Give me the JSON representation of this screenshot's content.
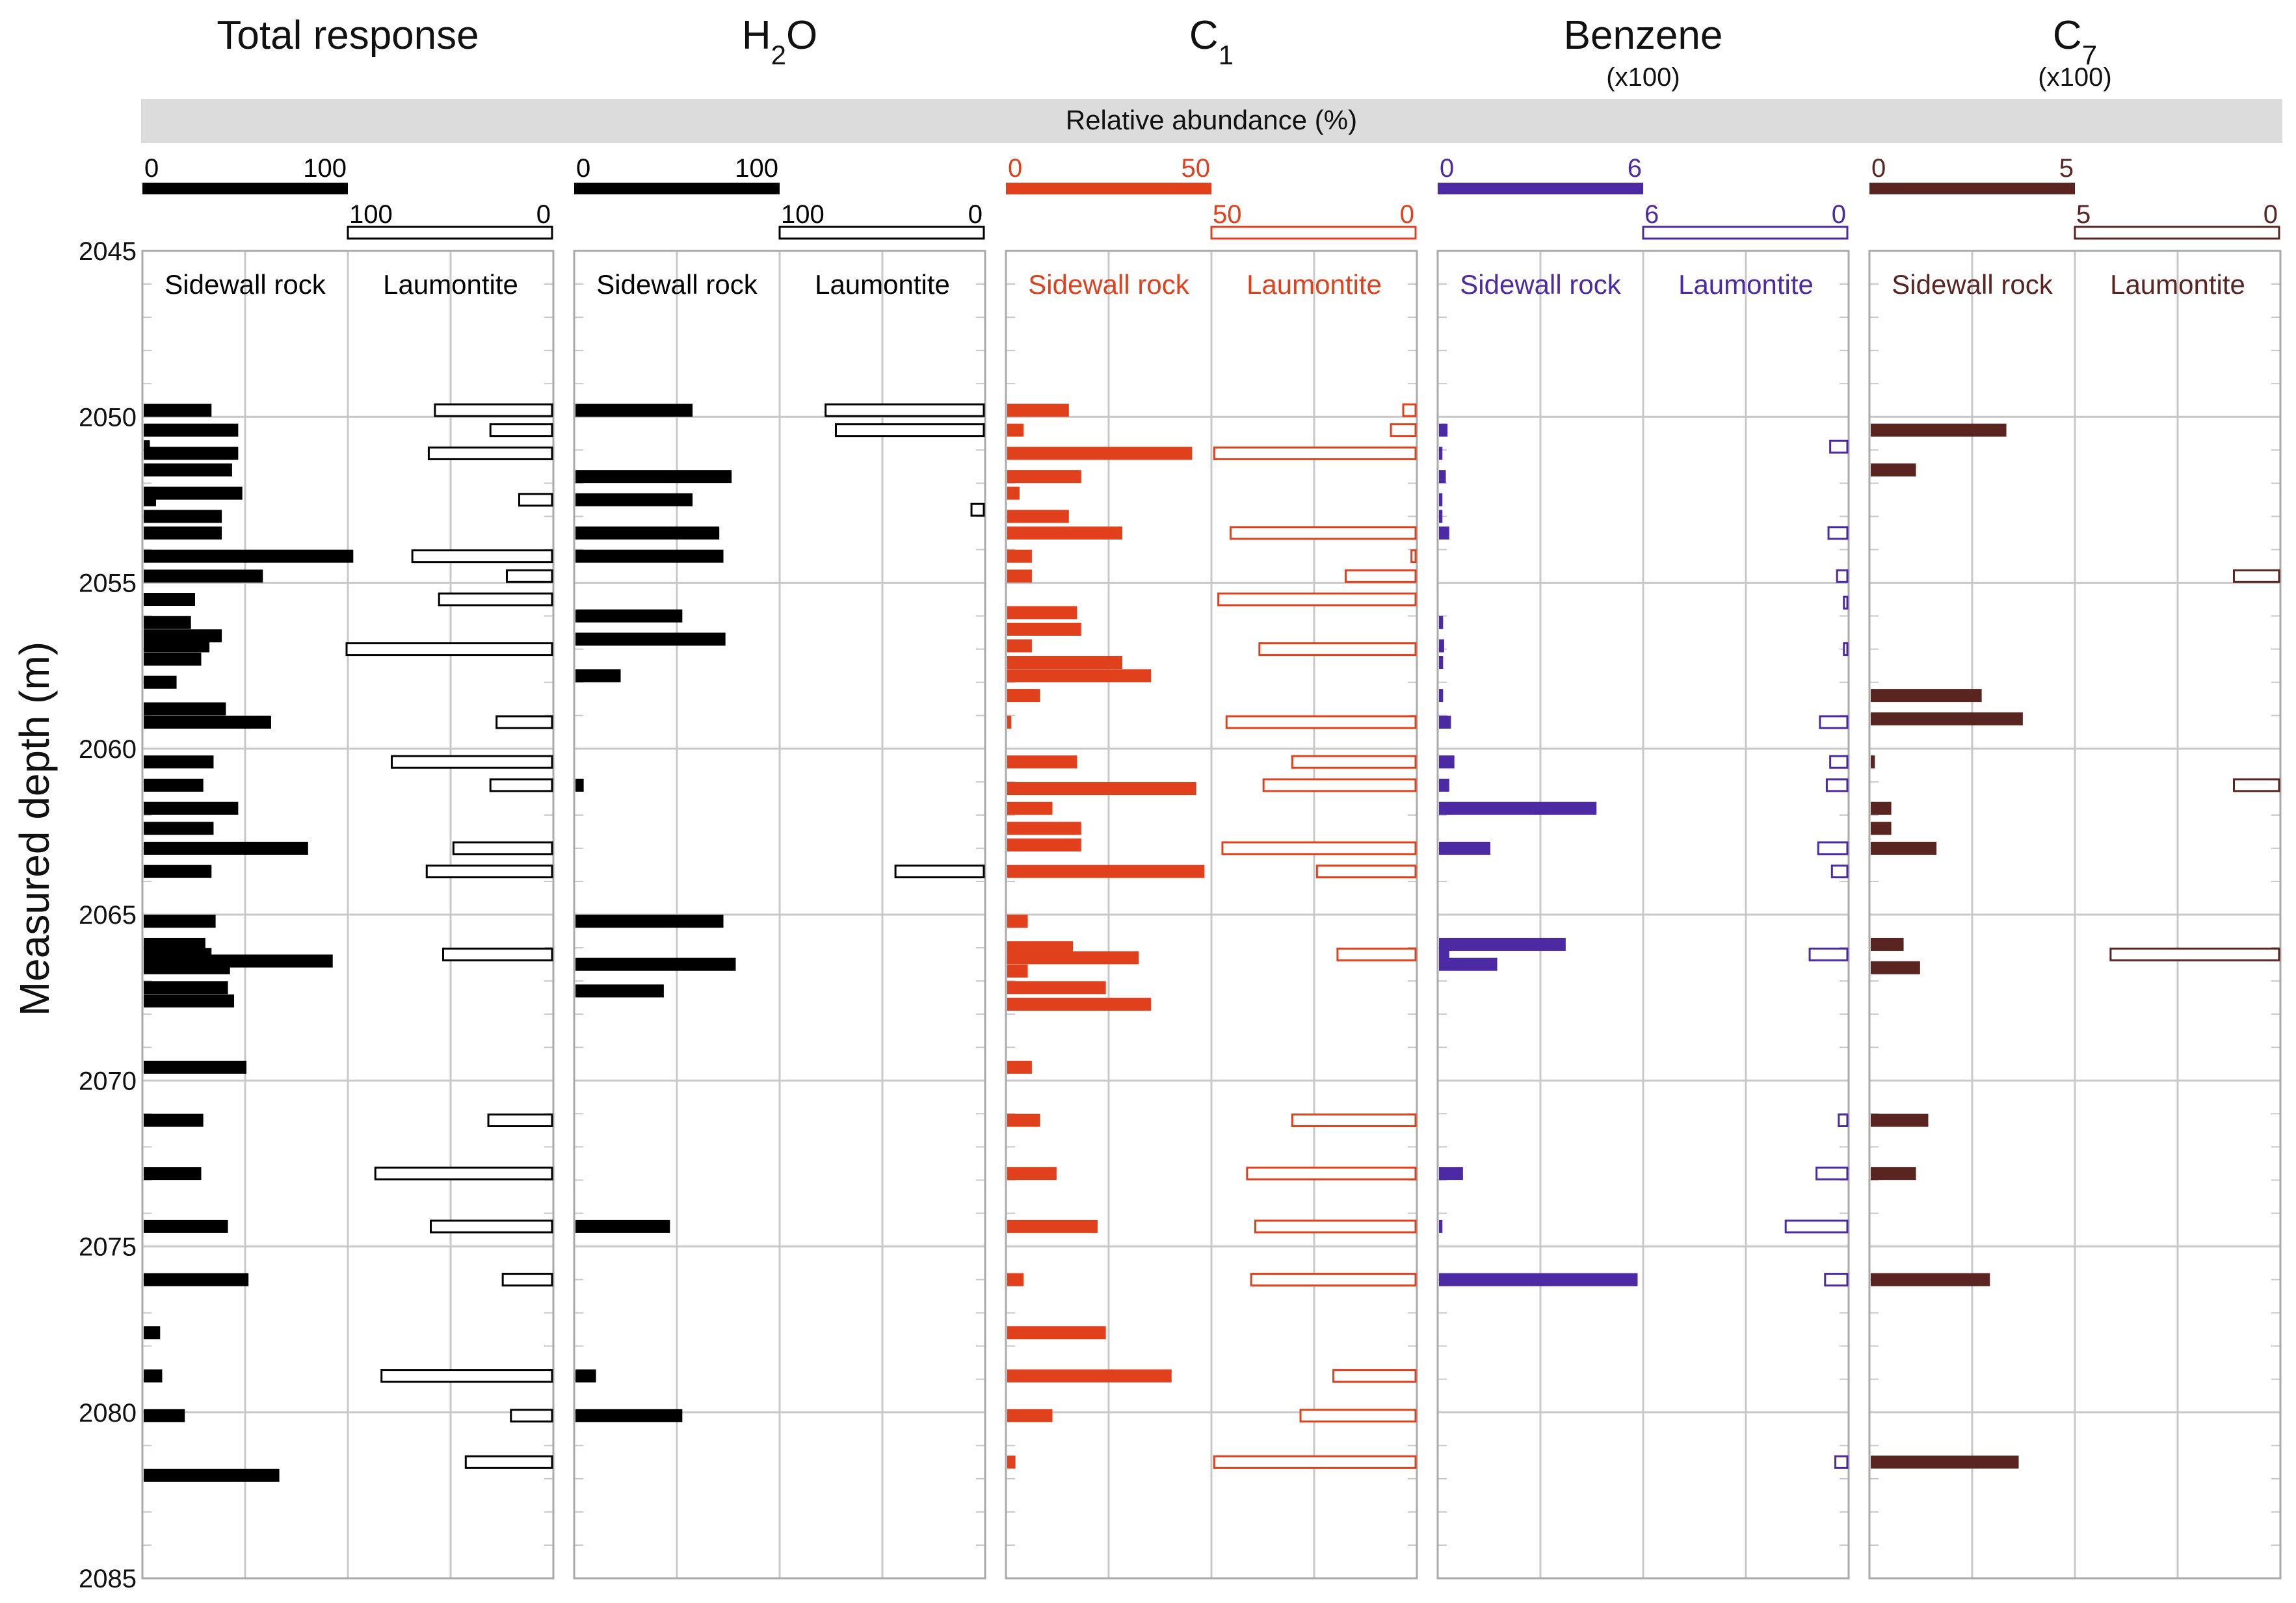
{
  "chart_data": {
    "type": "bar",
    "subtype": "depth-log-bars",
    "ylabel": "Measured depth (m)",
    "ylim": [
      2045,
      2085
    ],
    "y_ticks": [
      2045,
      2050,
      2055,
      2060,
      2065,
      2070,
      2075,
      2080,
      2085
    ],
    "banner": "Relative abundance (%)",
    "left_series_label": "Sidewall rock",
    "right_series_label": "Laumontite",
    "panels": [
      {
        "id": "total",
        "title": "Total response",
        "sub": "",
        "subscript": "",
        "subnote": "",
        "color": "#000000",
        "max": 100,
        "left_scale_labels": [
          "0",
          "100"
        ],
        "right_scale_labels": [
          "100",
          "0"
        ],
        "sidewall": [
          [
            2049.8,
            33
          ],
          [
            2050.4,
            46
          ],
          [
            2050.9,
            3
          ],
          [
            2051.1,
            46
          ],
          [
            2051.6,
            43
          ],
          [
            2052.3,
            48
          ],
          [
            2052.5,
            6
          ],
          [
            2053.0,
            38
          ],
          [
            2053.5,
            38
          ],
          [
            2054.2,
            102
          ],
          [
            2054.8,
            58
          ],
          [
            2055.5,
            25
          ],
          [
            2056.2,
            23
          ],
          [
            2056.6,
            38
          ],
          [
            2056.9,
            32
          ],
          [
            2057.3,
            28
          ],
          [
            2058.0,
            16
          ],
          [
            2058.8,
            40
          ],
          [
            2059.2,
            62
          ],
          [
            2060.4,
            34
          ],
          [
            2061.1,
            29
          ],
          [
            2061.8,
            46
          ],
          [
            2062.4,
            34
          ],
          [
            2063.0,
            80
          ],
          [
            2063.7,
            33
          ],
          [
            2065.2,
            35
          ],
          [
            2065.9,
            30
          ],
          [
            2066.2,
            33
          ],
          [
            2066.4,
            92
          ],
          [
            2066.6,
            42
          ],
          [
            2067.2,
            41
          ],
          [
            2067.6,
            44
          ],
          [
            2069.6,
            50
          ],
          [
            2071.2,
            29
          ],
          [
            2072.8,
            28
          ],
          [
            2074.4,
            41
          ],
          [
            2076.0,
            51
          ],
          [
            2077.6,
            8
          ],
          [
            2078.9,
            9
          ],
          [
            2080.1,
            20
          ],
          [
            2081.9,
            66
          ]
        ],
        "laumontite": [
          [
            2049.8,
            57
          ],
          [
            2050.4,
            30
          ],
          [
            2051.1,
            60
          ],
          [
            2052.5,
            16
          ],
          [
            2054.2,
            68
          ],
          [
            2054.8,
            22
          ],
          [
            2055.5,
            55
          ],
          [
            2057.0,
            100
          ],
          [
            2059.2,
            27
          ],
          [
            2060.4,
            78
          ],
          [
            2061.1,
            30
          ],
          [
            2063.0,
            48
          ],
          [
            2063.7,
            61
          ],
          [
            2066.2,
            53
          ],
          [
            2071.2,
            31
          ],
          [
            2072.8,
            86
          ],
          [
            2074.4,
            59
          ],
          [
            2076.0,
            24
          ],
          [
            2078.9,
            83
          ],
          [
            2080.1,
            20
          ],
          [
            2081.5,
            42
          ]
        ]
      },
      {
        "id": "h2o",
        "title": "H",
        "sub": "2",
        "subscript": "O",
        "subnote": "",
        "color": "#000000",
        "max": 100,
        "left_scale_labels": [
          "0",
          "100"
        ],
        "right_scale_labels": [
          "100",
          "0"
        ],
        "sidewall": [
          [
            2049.8,
            57
          ],
          [
            2051.8,
            76
          ],
          [
            2052.5,
            57
          ],
          [
            2053.5,
            70
          ],
          [
            2054.2,
            72
          ],
          [
            2056.0,
            52
          ],
          [
            2056.7,
            73
          ],
          [
            2057.8,
            22
          ],
          [
            2061.1,
            4
          ],
          [
            2065.2,
            72
          ],
          [
            2066.5,
            78
          ],
          [
            2067.3,
            43
          ],
          [
            2074.4,
            46
          ],
          [
            2078.9,
            10
          ],
          [
            2080.1,
            52
          ]
        ],
        "laumontite": [
          [
            2049.8,
            77
          ],
          [
            2050.4,
            72
          ],
          [
            2052.8,
            6
          ],
          [
            2063.7,
            43
          ]
        ]
      },
      {
        "id": "c1",
        "title": "C",
        "sub": "1",
        "subscript": "",
        "subnote": "",
        "color": "#e0401c",
        "max": 50,
        "left_scale_labels": [
          "0",
          "50"
        ],
        "right_scale_labels": [
          "50",
          "0"
        ],
        "sidewall": [
          [
            2049.8,
            15
          ],
          [
            2050.4,
            4
          ],
          [
            2051.1,
            45
          ],
          [
            2051.8,
            18
          ],
          [
            2052.3,
            3
          ],
          [
            2053.0,
            15
          ],
          [
            2053.5,
            28
          ],
          [
            2054.2,
            6
          ],
          [
            2054.8,
            6
          ],
          [
            2055.9,
            17
          ],
          [
            2056.4,
            18
          ],
          [
            2056.9,
            6
          ],
          [
            2057.4,
            28
          ],
          [
            2057.8,
            35
          ],
          [
            2058.4,
            8
          ],
          [
            2059.2,
            1
          ],
          [
            2060.4,
            17
          ],
          [
            2061.2,
            46
          ],
          [
            2061.8,
            11
          ],
          [
            2062.4,
            18
          ],
          [
            2062.9,
            18
          ],
          [
            2063.7,
            48
          ],
          [
            2065.2,
            5
          ],
          [
            2066.0,
            16
          ],
          [
            2066.3,
            32
          ],
          [
            2066.7,
            5
          ],
          [
            2067.2,
            24
          ],
          [
            2067.7,
            35
          ],
          [
            2069.6,
            6
          ],
          [
            2071.2,
            8
          ],
          [
            2072.8,
            12
          ],
          [
            2074.4,
            22
          ],
          [
            2076.0,
            4
          ],
          [
            2077.6,
            24
          ],
          [
            2078.9,
            40
          ],
          [
            2080.1,
            11
          ],
          [
            2081.5,
            2
          ]
        ],
        "laumontite": [
          [
            2049.8,
            3
          ],
          [
            2050.4,
            6
          ],
          [
            2051.1,
            49
          ],
          [
            2053.5,
            45
          ],
          [
            2054.2,
            1
          ],
          [
            2054.8,
            17
          ],
          [
            2055.5,
            48
          ],
          [
            2057.0,
            38
          ],
          [
            2059.2,
            46
          ],
          [
            2060.4,
            30
          ],
          [
            2061.1,
            37
          ],
          [
            2063.0,
            47
          ],
          [
            2063.7,
            24
          ],
          [
            2066.2,
            19
          ],
          [
            2071.2,
            30
          ],
          [
            2072.8,
            41
          ],
          [
            2074.4,
            39
          ],
          [
            2076.0,
            40
          ],
          [
            2078.9,
            20
          ],
          [
            2080.1,
            28
          ],
          [
            2081.5,
            49
          ]
        ]
      },
      {
        "id": "benzene",
        "title": "Benzene",
        "sub": "",
        "subscript": "",
        "subnote": "(x100)",
        "color": "#4b2aa4",
        "max": 6,
        "left_scale_labels": [
          "0",
          "6"
        ],
        "right_scale_labels": [
          "6",
          "0"
        ],
        "sidewall": [
          [
            2050.4,
            0.25
          ],
          [
            2051.1,
            0.1
          ],
          [
            2051.8,
            0.2
          ],
          [
            2052.5,
            0.1
          ],
          [
            2053.0,
            0.1
          ],
          [
            2053.5,
            0.3
          ],
          [
            2056.2,
            0.12
          ],
          [
            2056.9,
            0.15
          ],
          [
            2057.4,
            0.12
          ],
          [
            2058.4,
            0.12
          ],
          [
            2059.2,
            0.35
          ],
          [
            2060.4,
            0.45
          ],
          [
            2061.1,
            0.3
          ],
          [
            2061.8,
            4.6
          ],
          [
            2063.0,
            1.5
          ],
          [
            2065.9,
            3.7
          ],
          [
            2066.2,
            0.3
          ],
          [
            2066.5,
            1.7
          ],
          [
            2072.8,
            0.7
          ],
          [
            2074.4,
            0.1
          ],
          [
            2076.0,
            5.8
          ]
        ],
        "laumontite": [
          [
            2050.9,
            0.5
          ],
          [
            2053.5,
            0.55
          ],
          [
            2054.8,
            0.3
          ],
          [
            2055.6,
            0.1
          ],
          [
            2057.0,
            0.1
          ],
          [
            2059.2,
            0.8
          ],
          [
            2060.4,
            0.5
          ],
          [
            2061.1,
            0.6
          ],
          [
            2063.0,
            0.85
          ],
          [
            2063.7,
            0.45
          ],
          [
            2066.2,
            1.1
          ],
          [
            2071.2,
            0.25
          ],
          [
            2072.8,
            0.9
          ],
          [
            2074.4,
            1.8
          ],
          [
            2076.0,
            0.65
          ],
          [
            2081.5,
            0.35
          ]
        ]
      },
      {
        "id": "c7",
        "title": "C",
        "sub": "7",
        "subscript": "",
        "subnote": "(x100)",
        "color": "#5a2420",
        "max": 5,
        "left_scale_labels": [
          "0",
          "5"
        ],
        "right_scale_labels": [
          "5",
          "0"
        ],
        "sidewall": [
          [
            2050.4,
            3.3
          ],
          [
            2051.6,
            1.1
          ],
          [
            2058.4,
            2.7
          ],
          [
            2059.1,
            3.7
          ],
          [
            2060.4,
            0.1
          ],
          [
            2061.8,
            0.5
          ],
          [
            2062.4,
            0.5
          ],
          [
            2063.0,
            1.6
          ],
          [
            2065.9,
            0.8
          ],
          [
            2066.6,
            1.2
          ],
          [
            2071.2,
            1.4
          ],
          [
            2072.8,
            1.1
          ],
          [
            2076.0,
            2.9
          ],
          [
            2081.5,
            3.6
          ]
        ],
        "laumontite": [
          [
            2054.8,
            1.1
          ],
          [
            2061.1,
            1.1
          ],
          [
            2066.2,
            4.1
          ]
        ]
      }
    ]
  }
}
